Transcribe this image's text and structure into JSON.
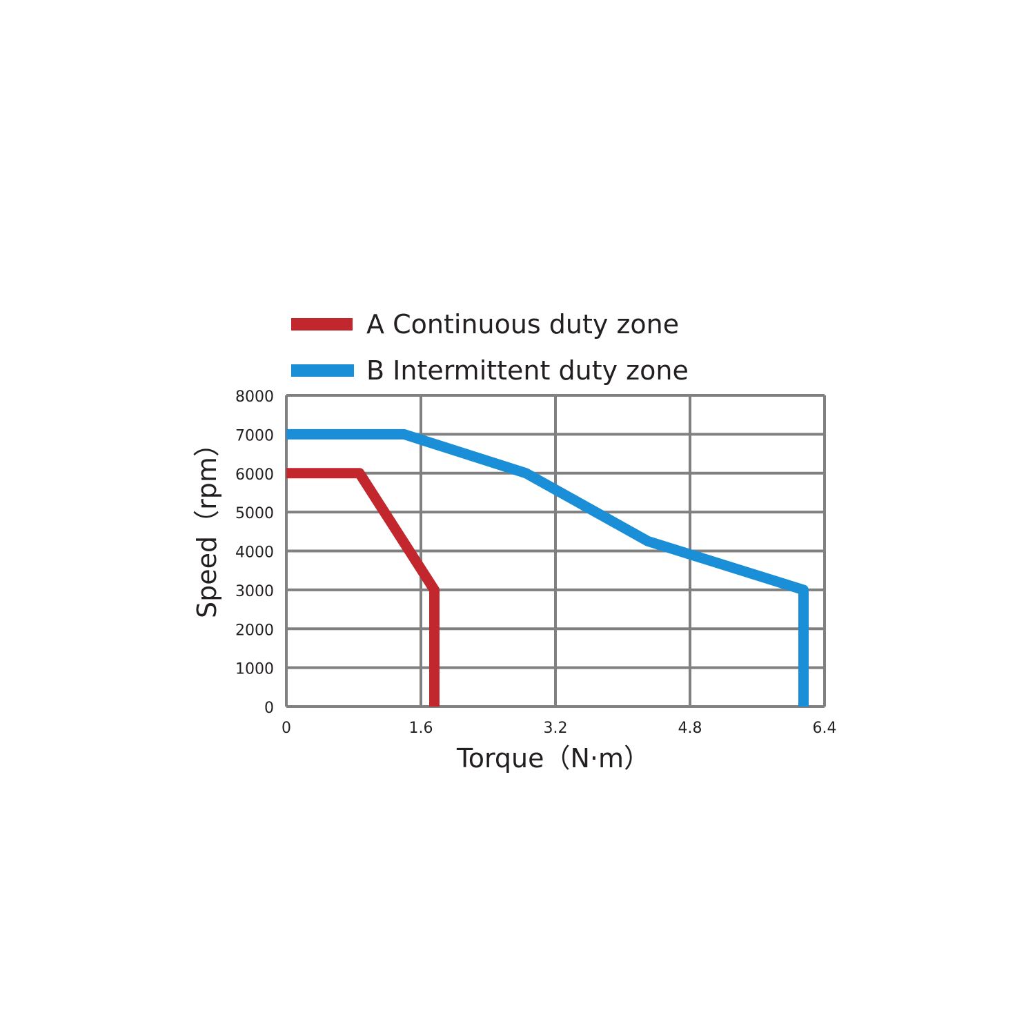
{
  "chart_data": {
    "type": "line",
    "xlabel": "Torque（N·m）",
    "ylabel": "Speed（rpm）",
    "xlim": [
      0,
      6.4
    ],
    "ylim": [
      0,
      8000
    ],
    "xticks": [
      "0",
      "1.6",
      "3.2",
      "4.8",
      "6.4"
    ],
    "yticks": [
      "0",
      "1000",
      "2000",
      "3000",
      "4000",
      "5000",
      "6000",
      "7000",
      "8000"
    ],
    "grid": true,
    "legend_position": "top-left",
    "series": [
      {
        "name": "A Continuous duty zone",
        "color": "#c1272d",
        "points": [
          [
            0,
            6000
          ],
          [
            0.87,
            6000
          ],
          [
            1.76,
            3000
          ],
          [
            1.76,
            0
          ]
        ]
      },
      {
        "name": "B Intermittent duty zone",
        "color": "#1a8fd7",
        "points": [
          [
            0,
            7000
          ],
          [
            1.4,
            7000
          ],
          [
            2.85,
            6000
          ],
          [
            4.3,
            4250
          ],
          [
            6.15,
            3000
          ],
          [
            6.15,
            0
          ]
        ]
      }
    ]
  }
}
